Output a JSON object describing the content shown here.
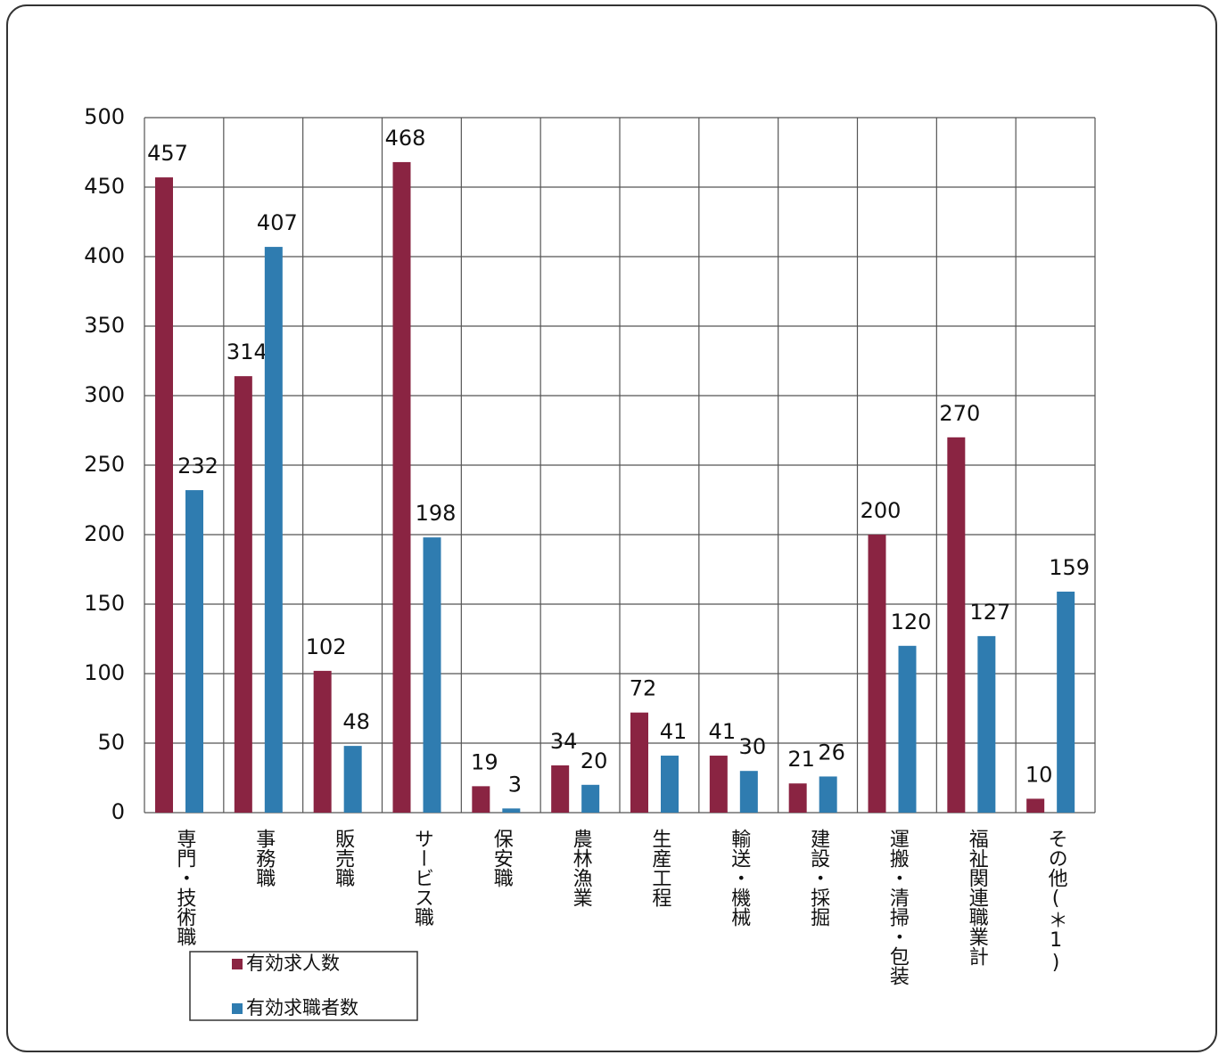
{
  "chart_data": {
    "type": "bar",
    "categories": [
      "専門・技術職",
      "事務職",
      "販売職",
      "サービス職",
      "保安職",
      "農林漁業",
      "生産工程",
      "輸送・機械",
      "建設・採掘",
      "運搬・清掃・包装",
      "福祉関連職業計",
      "その他(＊1)"
    ],
    "series": [
      {
        "name": "有効求人数",
        "color": "#8a2442",
        "values": [
          457,
          314,
          102,
          468,
          19,
          34,
          72,
          41,
          21,
          200,
          270,
          10
        ]
      },
      {
        "name": "有効求職者数",
        "color": "#2f7cb0",
        "values": [
          232,
          407,
          48,
          198,
          3,
          20,
          41,
          30,
          26,
          120,
          127,
          159
        ]
      }
    ],
    "ylim": [
      0,
      500
    ],
    "yticks": [
      0,
      50,
      100,
      150,
      200,
      250,
      300,
      350,
      400,
      450,
      500
    ],
    "grid": true
  }
}
